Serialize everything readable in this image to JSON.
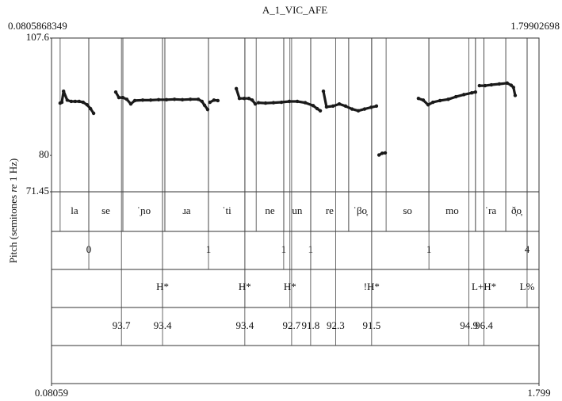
{
  "chart_data": {
    "type": "scatter",
    "title": "A_1_VIC_AFE",
    "ylabel": [
      "Pitch (semitones ",
      "re",
      " 1 Hz)"
    ],
    "xlim": [
      0.0805868349,
      1.79902698
    ],
    "xticks": [
      {
        "value": 0.0805868349,
        "label": "0.08059"
      },
      {
        "value": 1.79902698,
        "label": "1.799"
      }
    ],
    "ylim": [
      71.45,
      107.6
    ],
    "yticks": [
      71.45,
      80,
      107.6
    ],
    "color": "#1a1a1a",
    "x": [
      0.111,
      0.117,
      0.123,
      0.136,
      0.15,
      0.164,
      0.178,
      0.192,
      0.206,
      0.218,
      0.229,
      null,
      0.307,
      0.318,
      0.332,
      0.346,
      0.36,
      0.374,
      0.402,
      0.43,
      0.458,
      0.486,
      0.514,
      0.542,
      0.57,
      0.598,
      0.611,
      0.62,
      0.631,
      null,
      0.639,
      0.653,
      0.667,
      null,
      0.732,
      0.743,
      0.76,
      0.776,
      0.788,
      0.799,
      null,
      0.81,
      0.835,
      0.863,
      0.891,
      0.919,
      0.947,
      0.975,
      1.003,
      1.017,
      1.028,
      null,
      1.039,
      1.05,
      1.073,
      1.095,
      1.117,
      1.14,
      1.162,
      1.184,
      1.207,
      1.226,
      null,
      1.235,
      1.246,
      1.257,
      null,
      1.374,
      1.391,
      1.408,
      1.425,
      1.45,
      1.479,
      1.506,
      1.534,
      1.562,
      1.575,
      null,
      1.589,
      1.609,
      1.631,
      1.659,
      1.687,
      1.701,
      1.709,
      1.715
    ],
    "values": [
      92.3,
      92.5,
      95.1,
      93.0,
      92.7,
      92.7,
      92.7,
      92.5,
      91.9,
      91.0,
      89.9,
      null,
      94.9,
      93.6,
      93.6,
      93.2,
      92.1,
      92.9,
      93.0,
      93.0,
      93.1,
      93.1,
      93.2,
      93.1,
      93.2,
      93.2,
      92.7,
      91.8,
      90.8,
      null,
      92.5,
      93.0,
      92.9,
      null,
      95.7,
      93.4,
      93.4,
      93.4,
      93.0,
      92.1,
      null,
      92.4,
      92.3,
      92.4,
      92.5,
      92.7,
      92.7,
      92.4,
      91.7,
      91.0,
      90.5,
      null,
      95.1,
      91.4,
      91.6,
      92.1,
      91.6,
      90.9,
      90.5,
      90.9,
      91.3,
      91.6,
      null,
      80.1,
      80.5,
      80.6,
      null,
      93.4,
      93.0,
      91.9,
      92.5,
      92.9,
      93.2,
      93.8,
      94.3,
      94.7,
      94.9,
      null,
      96.4,
      96.4,
      96.6,
      96.8,
      97.0,
      96.5,
      96.0,
      94.1
    ],
    "tiers": [
      {
        "intervals": [
          {
            "start": 0.111,
            "end": 0.212,
            "label": "la"
          },
          {
            "start": 0.212,
            "end": 0.332,
            "label": "se"
          },
          {
            "start": 0.332,
            "end": 0.48,
            "label": "ˈɲo"
          },
          {
            "start": 0.48,
            "end": 0.634,
            "label": "ɹa"
          },
          {
            "start": 0.634,
            "end": 0.762,
            "label": "ˈti"
          },
          {
            "start": 0.802,
            "end": 0.899,
            "label": "ne"
          },
          {
            "start": 0.899,
            "end": 0.994,
            "label": "un"
          },
          {
            "start": 0.994,
            "end": 1.128,
            "label": "re"
          },
          {
            "start": 1.128,
            "end": 1.209,
            "label": "ˈβo̞"
          },
          {
            "start": 1.26,
            "end": 1.411,
            "label": "so"
          },
          {
            "start": 1.411,
            "end": 1.575,
            "label": "mo"
          },
          {
            "start": 1.575,
            "end": 1.682,
            "label": "ˈra"
          },
          {
            "start": 1.682,
            "end": 1.757,
            "label": "ð̞o̞"
          }
        ]
      },
      {
        "points": [
          {
            "time": 0.212,
            "label": 0
          },
          {
            "time": 0.634,
            "label": 1
          },
          {
            "time": 0.899,
            "label": 1
          },
          {
            "time": 0.994,
            "label": 1
          },
          {
            "time": 1.411,
            "label": 1
          },
          {
            "time": 1.757,
            "label": 4
          }
        ]
      },
      {
        "points": [
          {
            "time": 0.472,
            "label": "H*"
          },
          {
            "time": 0.762,
            "label": "H*"
          },
          {
            "time": 0.921,
            "label": "H*"
          },
          {
            "time": 1.209,
            "label": "!H*"
          },
          {
            "time": 1.605,
            "label": "L+H*"
          },
          {
            "time": 1.757,
            "label": "L%"
          }
        ]
      },
      {
        "points": [
          {
            "time": 0.327,
            "label": 93.7
          },
          {
            "time": 0.472,
            "label": 93.4
          },
          {
            "time": 0.762,
            "label": 93.4
          },
          {
            "time": 0.927,
            "label": 92.7
          },
          {
            "time": 0.994,
            "label": 91.8
          },
          {
            "time": 1.082,
            "label": 92.3
          },
          {
            "time": 1.209,
            "label": 91.5
          },
          {
            "time": 1.552,
            "label": 94.9
          },
          {
            "time": 1.605,
            "label": 96.4
          }
        ]
      }
    ]
  }
}
